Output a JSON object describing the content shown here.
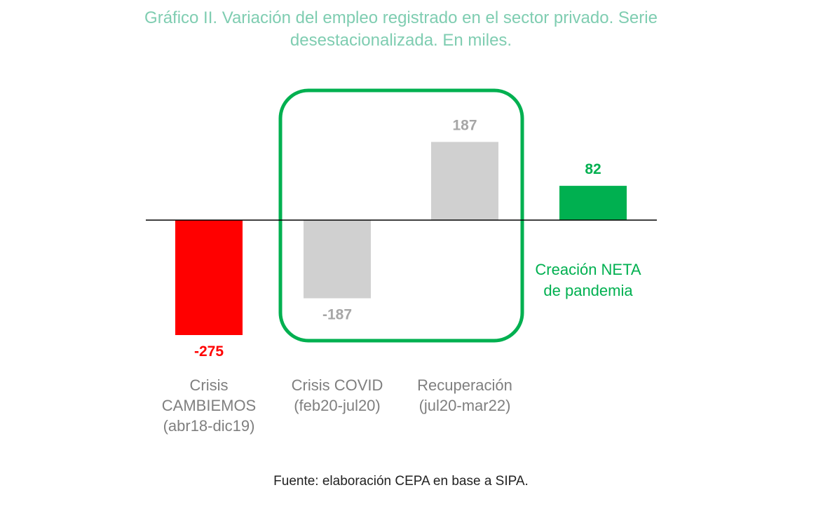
{
  "chart_data": {
    "type": "bar",
    "title": "Gráfico II. Variación del empleo registrado en el sector privado. Serie desestacionalizada. En miles.",
    "categories": [
      [
        "Crisis",
        "CAMBIEMOS",
        "(abr18-dic19)"
      ],
      [
        "Crisis COVID",
        "(feb20-jul20)"
      ],
      [
        "Recuperación",
        "(jul20-mar22)"
      ],
      [
        ""
      ]
    ],
    "values": [
      -275,
      -187,
      187,
      82
    ],
    "value_labels": [
      "-275",
      "-187",
      "187",
      "82"
    ],
    "colors": [
      "#ff0000",
      "#d0d0d0",
      "#d0d0d0",
      "#00b050"
    ],
    "label_colors": [
      "#ff0000",
      "#a6a6a6",
      "#a6a6a6",
      "#00b050"
    ],
    "ylim": [
      -275,
      187
    ],
    "xlabel": "",
    "ylabel": "",
    "highlight_box_color": "#00b050",
    "annotation": [
      "Creación NETA",
      "de pandemia"
    ],
    "annotation_color": "#00b050",
    "grid": false,
    "source": "Fuente: elaboración CEPA en base a SIPA."
  }
}
